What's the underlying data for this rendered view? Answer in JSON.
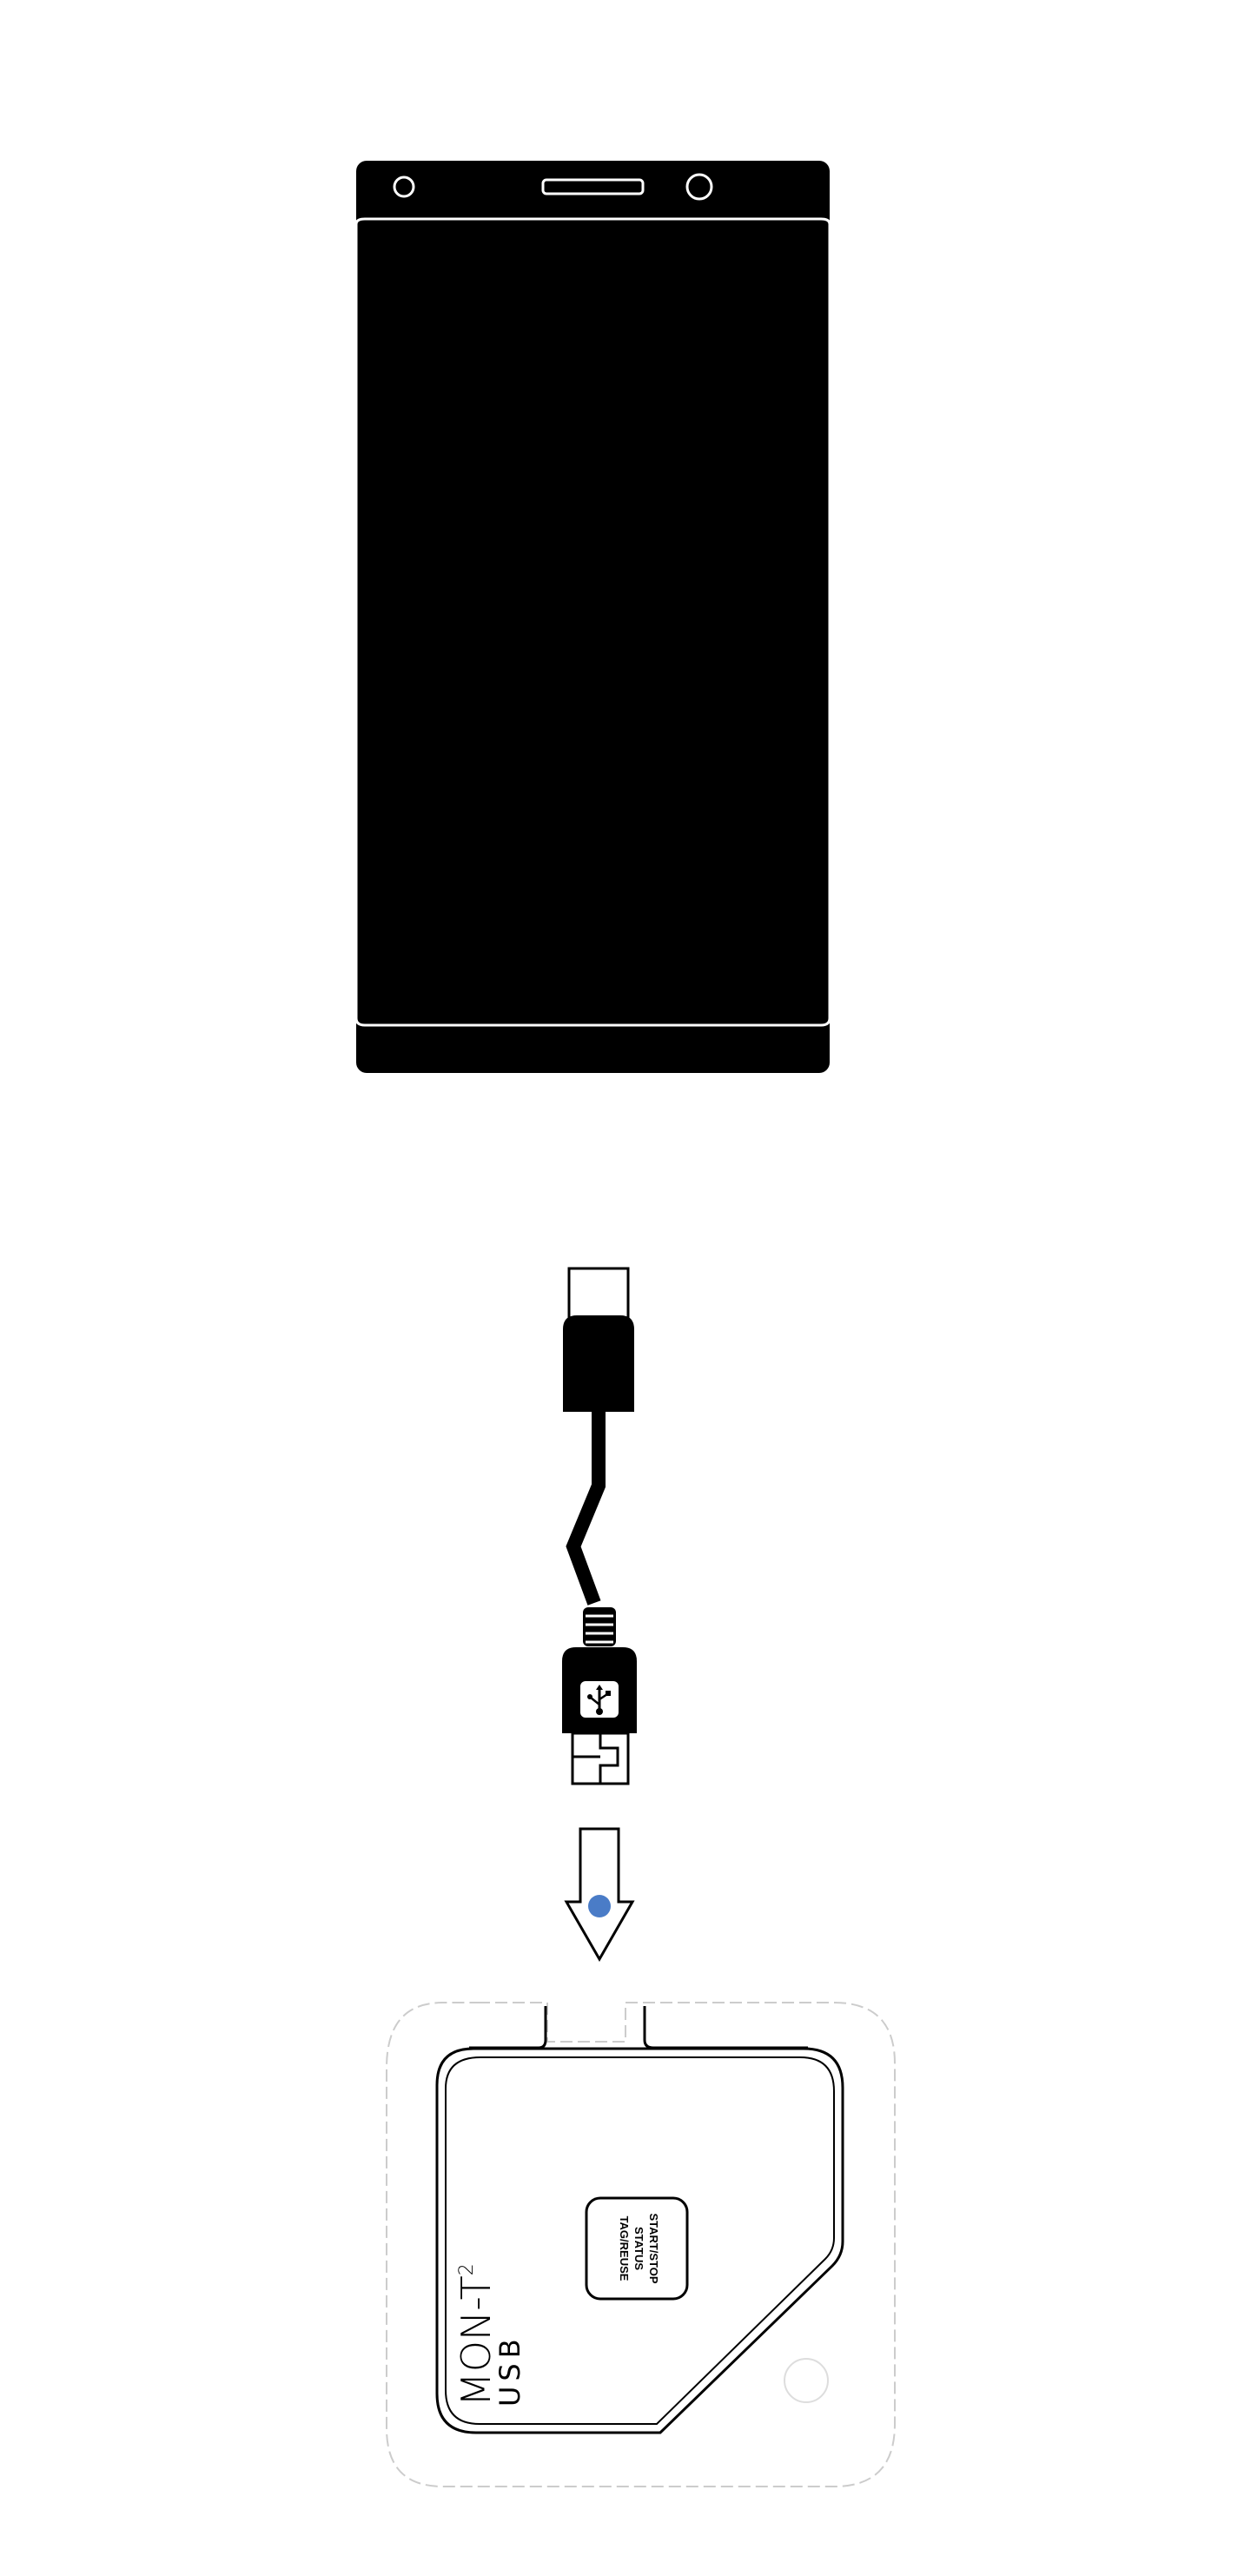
{
  "colors": {
    "background": "#ffffff",
    "ink": "#000000",
    "accent_dot": "#4a7cc7"
  },
  "phone": {
    "icon": "smartphone-icon"
  },
  "cable": {
    "icon": "usb-cable-icon",
    "plug_badge_icon": "usb-symbol-icon"
  },
  "arrow": {
    "icon": "arrow-down-icon"
  },
  "device": {
    "brand_line1": "MON-T",
    "brand_superscript": "2",
    "brand_line2": "USB",
    "button_lines": [
      "START/STOP",
      "STATUS",
      "TAG/REUSE"
    ]
  }
}
